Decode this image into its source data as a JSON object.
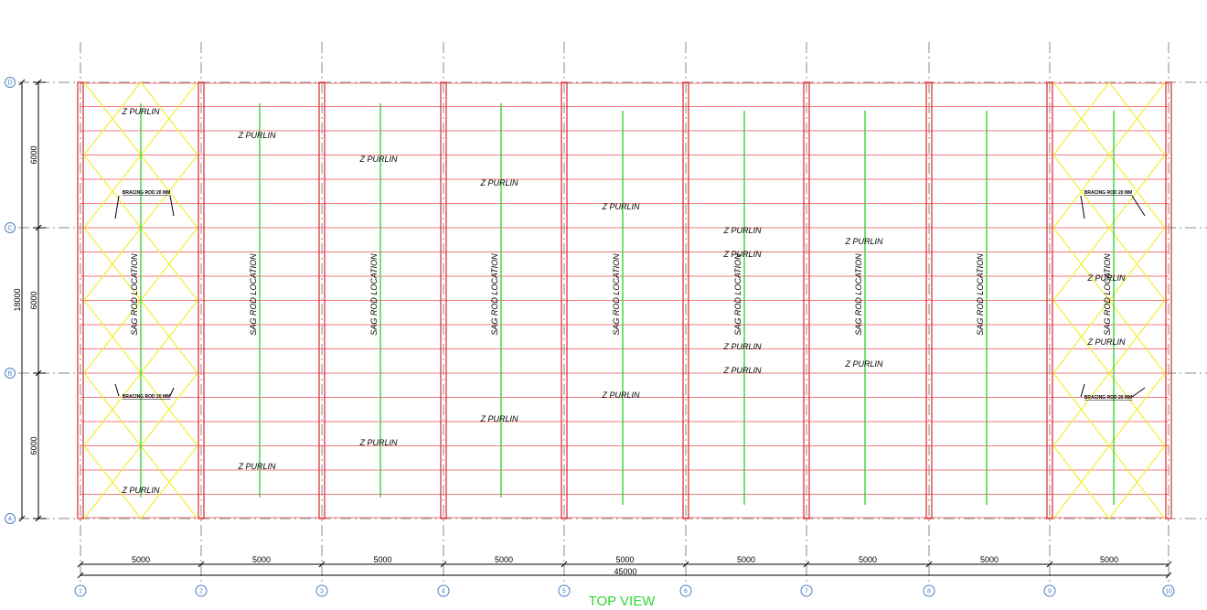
{
  "title": "TOP VIEW",
  "grid_rows": [
    "D",
    "C",
    "B",
    "A"
  ],
  "grid_cols": [
    "1",
    "2",
    "3",
    "4",
    "5",
    "6",
    "7",
    "8",
    "9",
    "10"
  ],
  "bay_width_label": "5000",
  "overall_width_label": "45000",
  "row_spacing_labels": [
    "6000",
    "6000",
    "6000"
  ],
  "overall_height_label": "18000",
  "sag_rod_label": "SAG ROD LOCATION",
  "bracing_label": "BRACING ROD 20 MM",
  "purlin_label": "Z PURLIN",
  "colors": {
    "rafter": "#e0262d",
    "purlin": "#ec7d7d",
    "sag_rod": "#3ad43a",
    "bracing": "#f2ee35",
    "grid_bubble": "#4a7fc2",
    "title": "#2fd62f"
  }
}
